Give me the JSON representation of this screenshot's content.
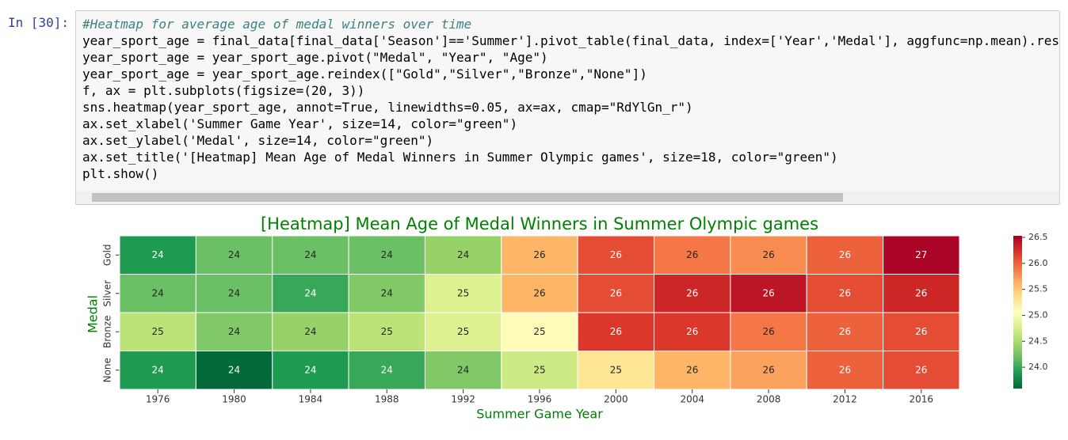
{
  "cell": {
    "prompt": "In [30]:",
    "code": [
      "#Heatmap for average age of medal winners over time",
      "year_sport_age = final_data[final_data['Season']=='Summer'].pivot_table(final_data, index=['Year','Medal'], aggfunc=np.mean).rese",
      "year_sport_age = year_sport_age.pivot(\"Medal\", \"Year\", \"Age\")",
      "year_sport_age = year_sport_age.reindex([\"Gold\",\"Silver\",\"Bronze\",\"None\"])",
      "f, ax = plt.subplots(figsize=(20, 3))",
      "sns.heatmap(year_sport_age, annot=True, linewidths=0.05, ax=ax, cmap=\"RdYlGn_r\")",
      "ax.set_xlabel('Summer Game Year', size=14, color=\"green\")",
      "ax.set_ylabel('Medal', size=14, color=\"green\")",
      "ax.set_title('[Heatmap] Mean Age of Medal Winners in Summer Olympic games', size=18, color=\"green\")",
      "plt.show()"
    ]
  },
  "chart_data": {
    "type": "heatmap",
    "title": "[Heatmap] Mean Age of Medal Winners in Summer Olympic games",
    "x_label": "Summer Game Year",
    "y_label": "Medal",
    "label_color": "green",
    "categories": [
      "1976",
      "1980",
      "1984",
      "1988",
      "1992",
      "1996",
      "2000",
      "2004",
      "2008",
      "2012",
      "2016"
    ],
    "series": [
      {
        "name": "Gold",
        "values": [
          23.9,
          24.2,
          24.2,
          24.2,
          24.4,
          25.6,
          26.1,
          25.9,
          25.8,
          26.0,
          26.5
        ],
        "value_labels": [
          "24",
          "24",
          "24",
          "24",
          "24",
          "26",
          "26",
          "26",
          "26",
          "26",
          "27"
        ]
      },
      {
        "name": "Silver",
        "values": [
          24.2,
          24.2,
          24.0,
          24.3,
          24.8,
          25.6,
          26.1,
          26.3,
          26.4,
          26.1,
          26.3
        ],
        "value_labels": [
          "24",
          "24",
          "24",
          "24",
          "25",
          "26",
          "26",
          "26",
          "26",
          "26",
          "26"
        ]
      },
      {
        "name": "Bronze",
        "values": [
          24.6,
          24.3,
          24.4,
          24.6,
          24.8,
          25.1,
          26.2,
          26.2,
          25.9,
          26.0,
          26.1
        ],
        "value_labels": [
          "25",
          "24",
          "24",
          "25",
          "25",
          "25",
          "26",
          "26",
          "26",
          "26",
          "26"
        ]
      },
      {
        "name": "None",
        "values": [
          23.9,
          23.6,
          23.9,
          24.0,
          24.3,
          24.7,
          25.3,
          25.6,
          25.7,
          26.0,
          26.1
        ],
        "value_labels": [
          "24",
          "24",
          "24",
          "24",
          "24",
          "25",
          "25",
          "26",
          "26",
          "26",
          "26"
        ]
      }
    ],
    "colormap": [
      "#006837",
      "#1a9850",
      "#66bd63",
      "#a6d96a",
      "#d9ef8b",
      "#ffffbf",
      "#fee08b",
      "#fdae61",
      "#f46d43",
      "#d73027",
      "#a50026"
    ],
    "zlim": [
      23.59,
      26.53
    ],
    "zticks": [
      {
        "value": 24,
        "label": "24.0"
      },
      {
        "value": 24.5,
        "label": "24.5"
      },
      {
        "value": 25,
        "label": "25.0"
      },
      {
        "value": 25.5,
        "label": "25.5"
      },
      {
        "value": 26,
        "label": "26.0"
      },
      {
        "value": 26.5,
        "label": "26.5"
      }
    ]
  }
}
